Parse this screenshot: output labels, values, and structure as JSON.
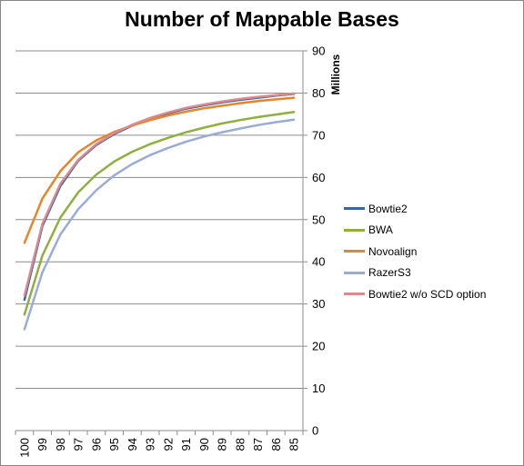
{
  "chart_data": {
    "type": "line",
    "title": "Number of Mappable Bases",
    "ylabel": "Millions",
    "xlabel": "",
    "y_axis_position": "right",
    "categories": [
      "100",
      "99",
      "98",
      "97",
      "96",
      "95",
      "94",
      "93",
      "92",
      "91",
      "90",
      "89",
      "88",
      "87",
      "86",
      "85"
    ],
    "ylim": [
      0,
      90
    ],
    "yticks": [
      0,
      10,
      20,
      30,
      40,
      50,
      60,
      70,
      80,
      90
    ],
    "grid": true,
    "legend_position": "right",
    "series": [
      {
        "name": "Bowtie2",
        "color": "#3b64a0",
        "values": [
          31,
          48.5,
          58,
          64,
          67.7,
          70.3,
          72.3,
          73.9,
          75.2,
          76.3,
          77.1,
          77.8,
          78.4,
          78.9,
          79.4,
          79.8
        ]
      },
      {
        "name": "BWA",
        "color": "#8fb040",
        "values": [
          27.5,
          41.5,
          50.5,
          56.5,
          60.7,
          63.8,
          66.1,
          67.9,
          69.4,
          70.7,
          71.8,
          72.8,
          73.6,
          74.3,
          74.9,
          75.5
        ]
      },
      {
        "name": "Novoalign",
        "color": "#e6862a",
        "values": [
          44.5,
          55,
          61.5,
          66,
          68.8,
          70.8,
          72.3,
          73.6,
          74.7,
          75.6,
          76.4,
          77,
          77.6,
          78.1,
          78.5,
          78.9
        ]
      },
      {
        "name": "RazerS3",
        "color": "#9aabd6",
        "values": [
          24,
          37.5,
          46.5,
          52.5,
          57,
          60.5,
          63.2,
          65.3,
          67,
          68.5,
          69.7,
          70.7,
          71.6,
          72.4,
          73.1,
          73.7
        ]
      },
      {
        "name": "Bowtie2 w/o SCD option",
        "color": "#d98b8d",
        "values": [
          32,
          49,
          58.5,
          64.2,
          67.9,
          70.5,
          72.5,
          74.1,
          75.4,
          76.5,
          77.3,
          78,
          78.6,
          79.1,
          79.5,
          79.9
        ]
      }
    ]
  }
}
